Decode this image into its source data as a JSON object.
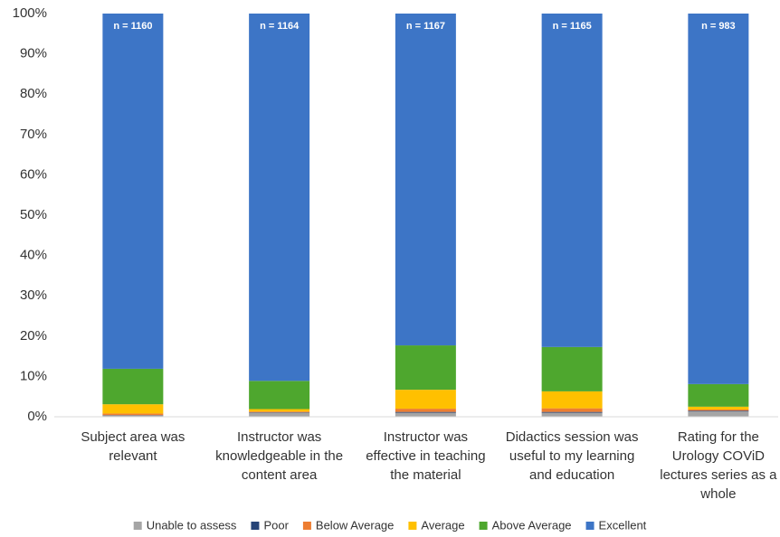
{
  "chart_data": {
    "type": "stacked_bar",
    "categories": [
      [
        "Subject area was",
        "relevant"
      ],
      [
        "Instructor was",
        "knowledgeable in the",
        "content area"
      ],
      [
        "Instructor was",
        "effective in teaching",
        "the material"
      ],
      [
        "Didactics session was",
        "useful to my learning",
        "and education"
      ],
      [
        "Rating for the",
        "Urology COViD",
        "lectures series as a",
        "whole"
      ]
    ],
    "annotations": [
      "n = 1160",
      "n = 1164",
      "n = 1167",
      "n = 1165",
      "n = 983"
    ],
    "series": [
      {
        "name": "Unable to assess",
        "color": "#a5a5a5",
        "values": [
          0.3,
          1.0,
          1.0,
          1.0,
          1.3
        ]
      },
      {
        "name": "Poor",
        "color": "#264478",
        "values": [
          0.1,
          0.1,
          0.2,
          0.2,
          0.2
        ]
      },
      {
        "name": "Below Average",
        "color": "#ed7d31",
        "values": [
          0.4,
          0.2,
          0.8,
          0.9,
          0.3
        ]
      },
      {
        "name": "Average",
        "color": "#ffc000",
        "values": [
          2.3,
          0.6,
          4.7,
          4.2,
          0.7
        ]
      },
      {
        "name": "Above Average",
        "color": "#4ea72e",
        "values": [
          8.8,
          7.0,
          11.0,
          11.0,
          5.6
        ]
      },
      {
        "name": "Excellent",
        "color": "#3d75c6",
        "values": [
          88.1,
          91.1,
          82.3,
          82.7,
          91.9
        ]
      }
    ],
    "ylim": [
      0,
      100
    ],
    "yticks": [
      {
        "value": 0,
        "label": "0%"
      },
      {
        "value": 10,
        "label": "10%"
      },
      {
        "value": 20,
        "label": "20%"
      },
      {
        "value": 30,
        "label": "30%"
      },
      {
        "value": 40,
        "label": "40%"
      },
      {
        "value": 50,
        "label": "50%"
      },
      {
        "value": 60,
        "label": "60%"
      },
      {
        "value": 70,
        "label": "70%"
      },
      {
        "value": 80,
        "label": "80%"
      },
      {
        "value": 90,
        "label": "90%"
      },
      {
        "value": 100,
        "label": "100%"
      }
    ],
    "grid": false,
    "legend": "bottom"
  }
}
